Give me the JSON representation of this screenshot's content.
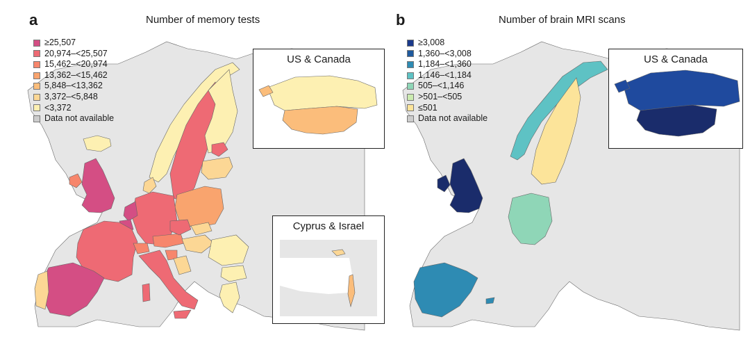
{
  "panels": [
    {
      "letter": "a",
      "title": "Number of memory tests",
      "legend": [
        {
          "label": "≥25,507",
          "color": "#d44e84"
        },
        {
          "label": "20,974–<25,507",
          "color": "#ee6a74"
        },
        {
          "label": "15,462–<20,974",
          "color": "#f7866c"
        },
        {
          "label": "13,362–<15,462",
          "color": "#f9a46e"
        },
        {
          "label": "5,848–<13,362",
          "color": "#fbbd7b"
        },
        {
          "label": "3,372–<5,848",
          "color": "#fcd795"
        },
        {
          "label": "<3,372",
          "color": "#fdf0b2"
        },
        {
          "label": "Data not available",
          "color": "#cccccc"
        }
      ],
      "insets": [
        {
          "title": "US & Canada"
        },
        {
          "title": "Cyprus & Israel"
        }
      ]
    },
    {
      "letter": "b",
      "title": "Number of brain MRI scans",
      "legend": [
        {
          "label": "≥3,008",
          "color": "#1a3a8c"
        },
        {
          "label": "1,360–<3,008",
          "color": "#1f5a9e"
        },
        {
          "label": "1,184–<1,360",
          "color": "#2e8bb3"
        },
        {
          "label": "1,146–<1,184",
          "color": "#5ec2c4"
        },
        {
          "label": "505–<1,146",
          "color": "#8fd6b7"
        },
        {
          "label": ">501–<505",
          "color": "#cbebb0"
        },
        {
          "label": "≤501",
          "color": "#fce49a"
        },
        {
          "label": "Data not available",
          "color": "#cccccc"
        }
      ],
      "insets": [
        {
          "title": "US & Canada"
        }
      ]
    }
  ],
  "colors": {
    "land_gray": "#e6e6e6",
    "border_line": "#555555",
    "sea": "#ffffff"
  }
}
